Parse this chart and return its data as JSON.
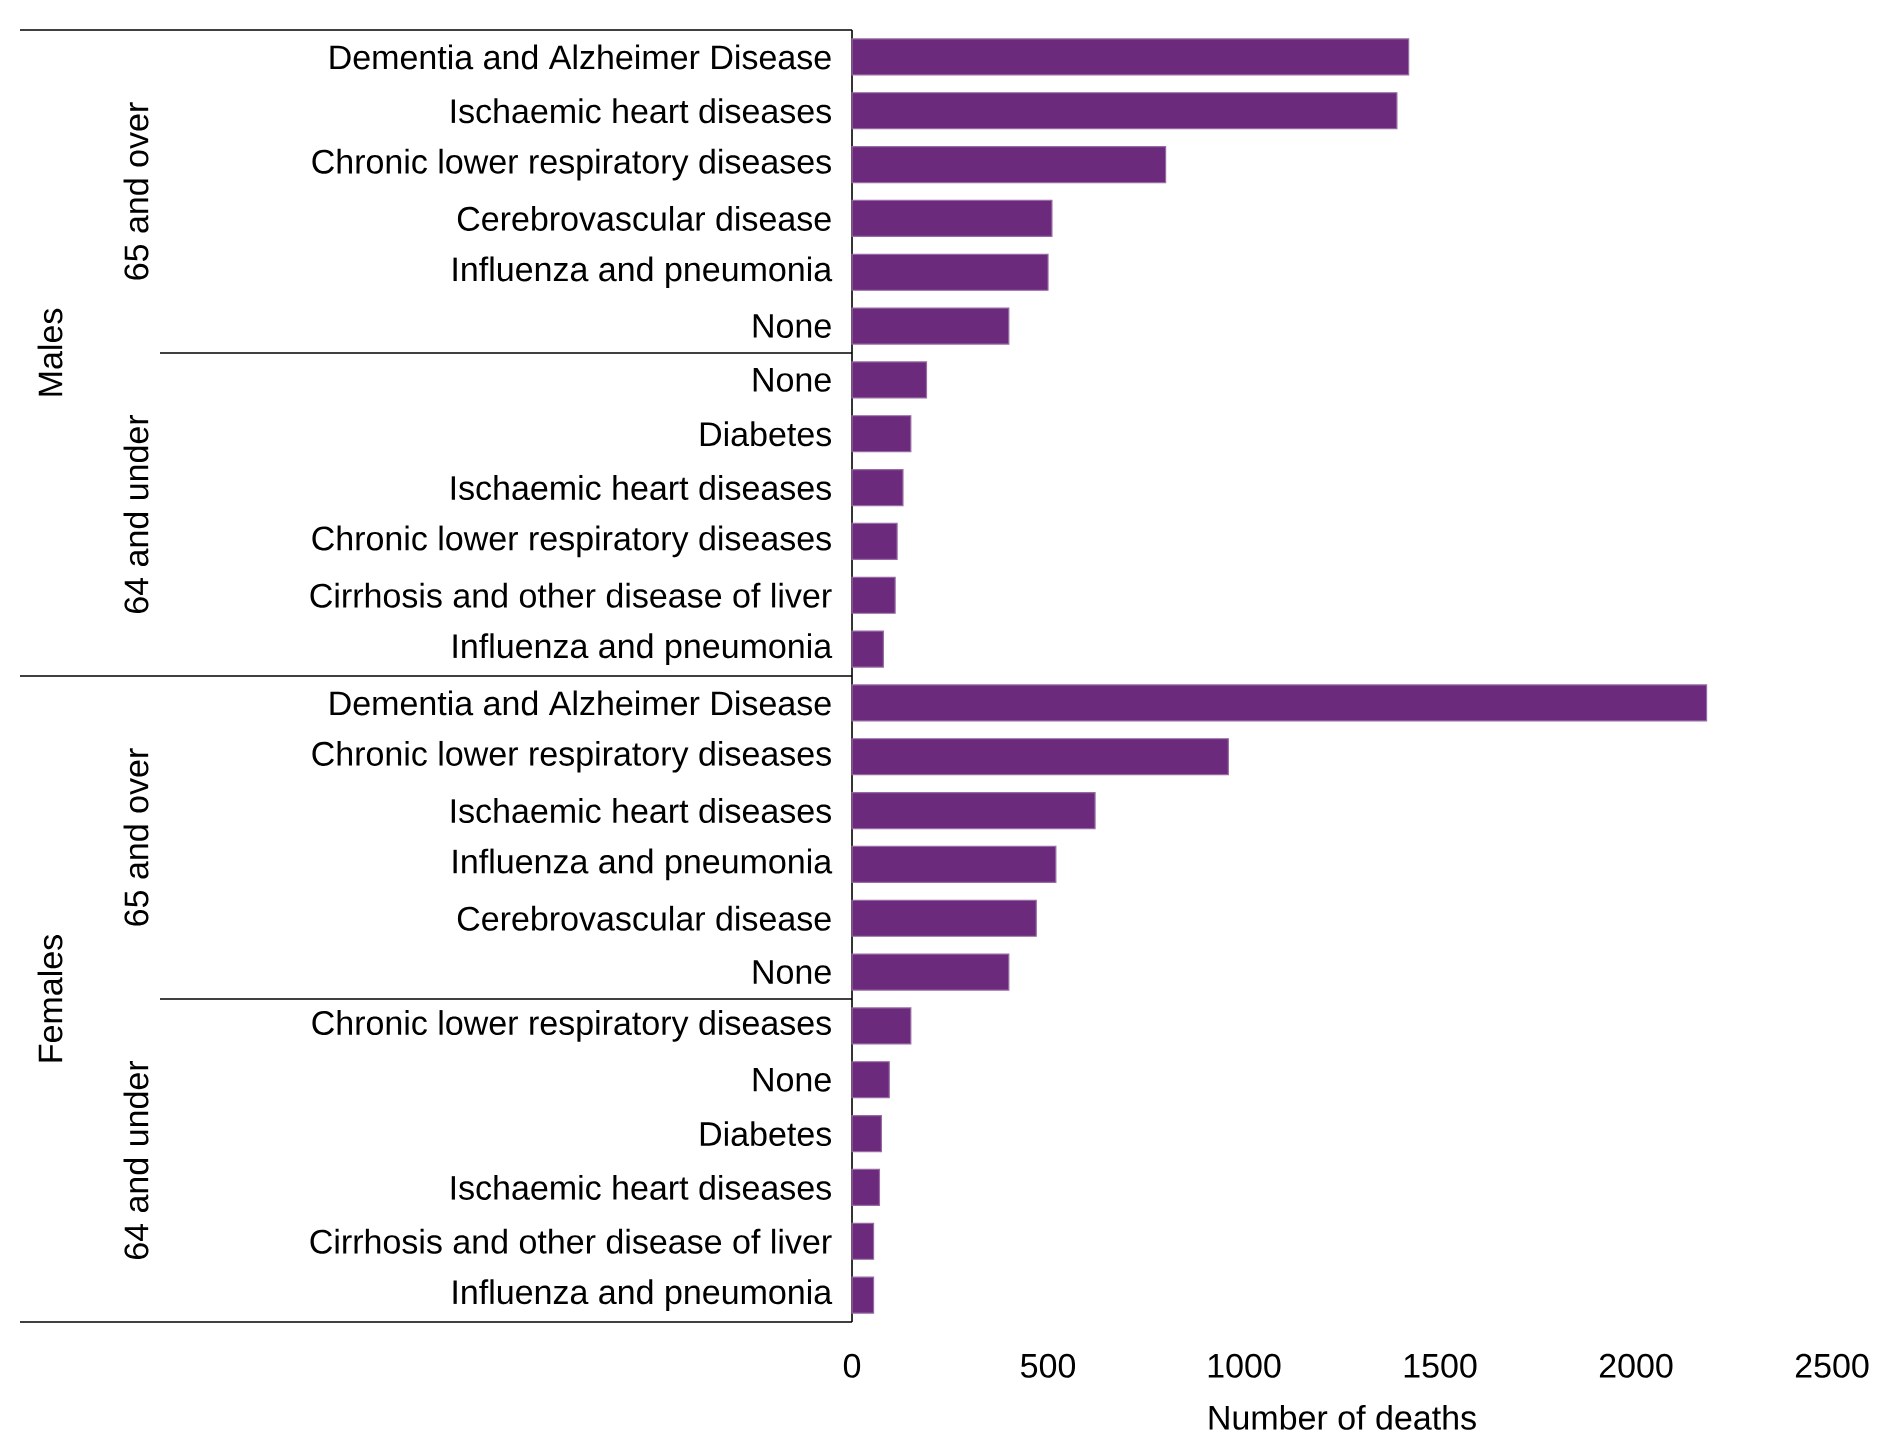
{
  "chart_data": {
    "type": "bar",
    "orientation": "horizontal",
    "categories": [
      "Dementia and Alzheimer Disease",
      "Ischaemic heart diseases",
      "Chronic lower respiratory diseases",
      "Cerebrovascular disease",
      "Influenza and pneumonia",
      "None",
      "None",
      "Diabetes",
      "Ischaemic heart diseases",
      "Chronic lower respiratory diseases",
      "Cirrhosis and other disease of liver",
      "Influenza and pneumonia",
      "Dementia and Alzheimer Disease",
      "Chronic lower respiratory diseases",
      "Ischaemic heart diseases",
      "Influenza and pneumonia",
      "Cerebrovascular disease",
      "None",
      "Chronic lower respiratory diseases",
      "None",
      "Diabetes",
      "Ischaemic heart diseases",
      "Cirrhosis and other disease of liver",
      "Influenza and pneumonia"
    ],
    "values": [
      1420,
      1390,
      800,
      510,
      500,
      400,
      190,
      150,
      130,
      115,
      110,
      80,
      2180,
      960,
      620,
      520,
      470,
      400,
      150,
      95,
      75,
      70,
      55,
      55
    ],
    "color": "#6b2a7b",
    "xlim": [
      0,
      2500
    ],
    "xticks": [
      0,
      500,
      1000,
      1500,
      2000,
      2500
    ],
    "xlabel": "Number of deaths",
    "annotations": [
      "Males",
      "65 and over",
      "64 and under",
      "Females",
      "65 and over",
      "64 and under"
    ],
    "grid": false
  }
}
